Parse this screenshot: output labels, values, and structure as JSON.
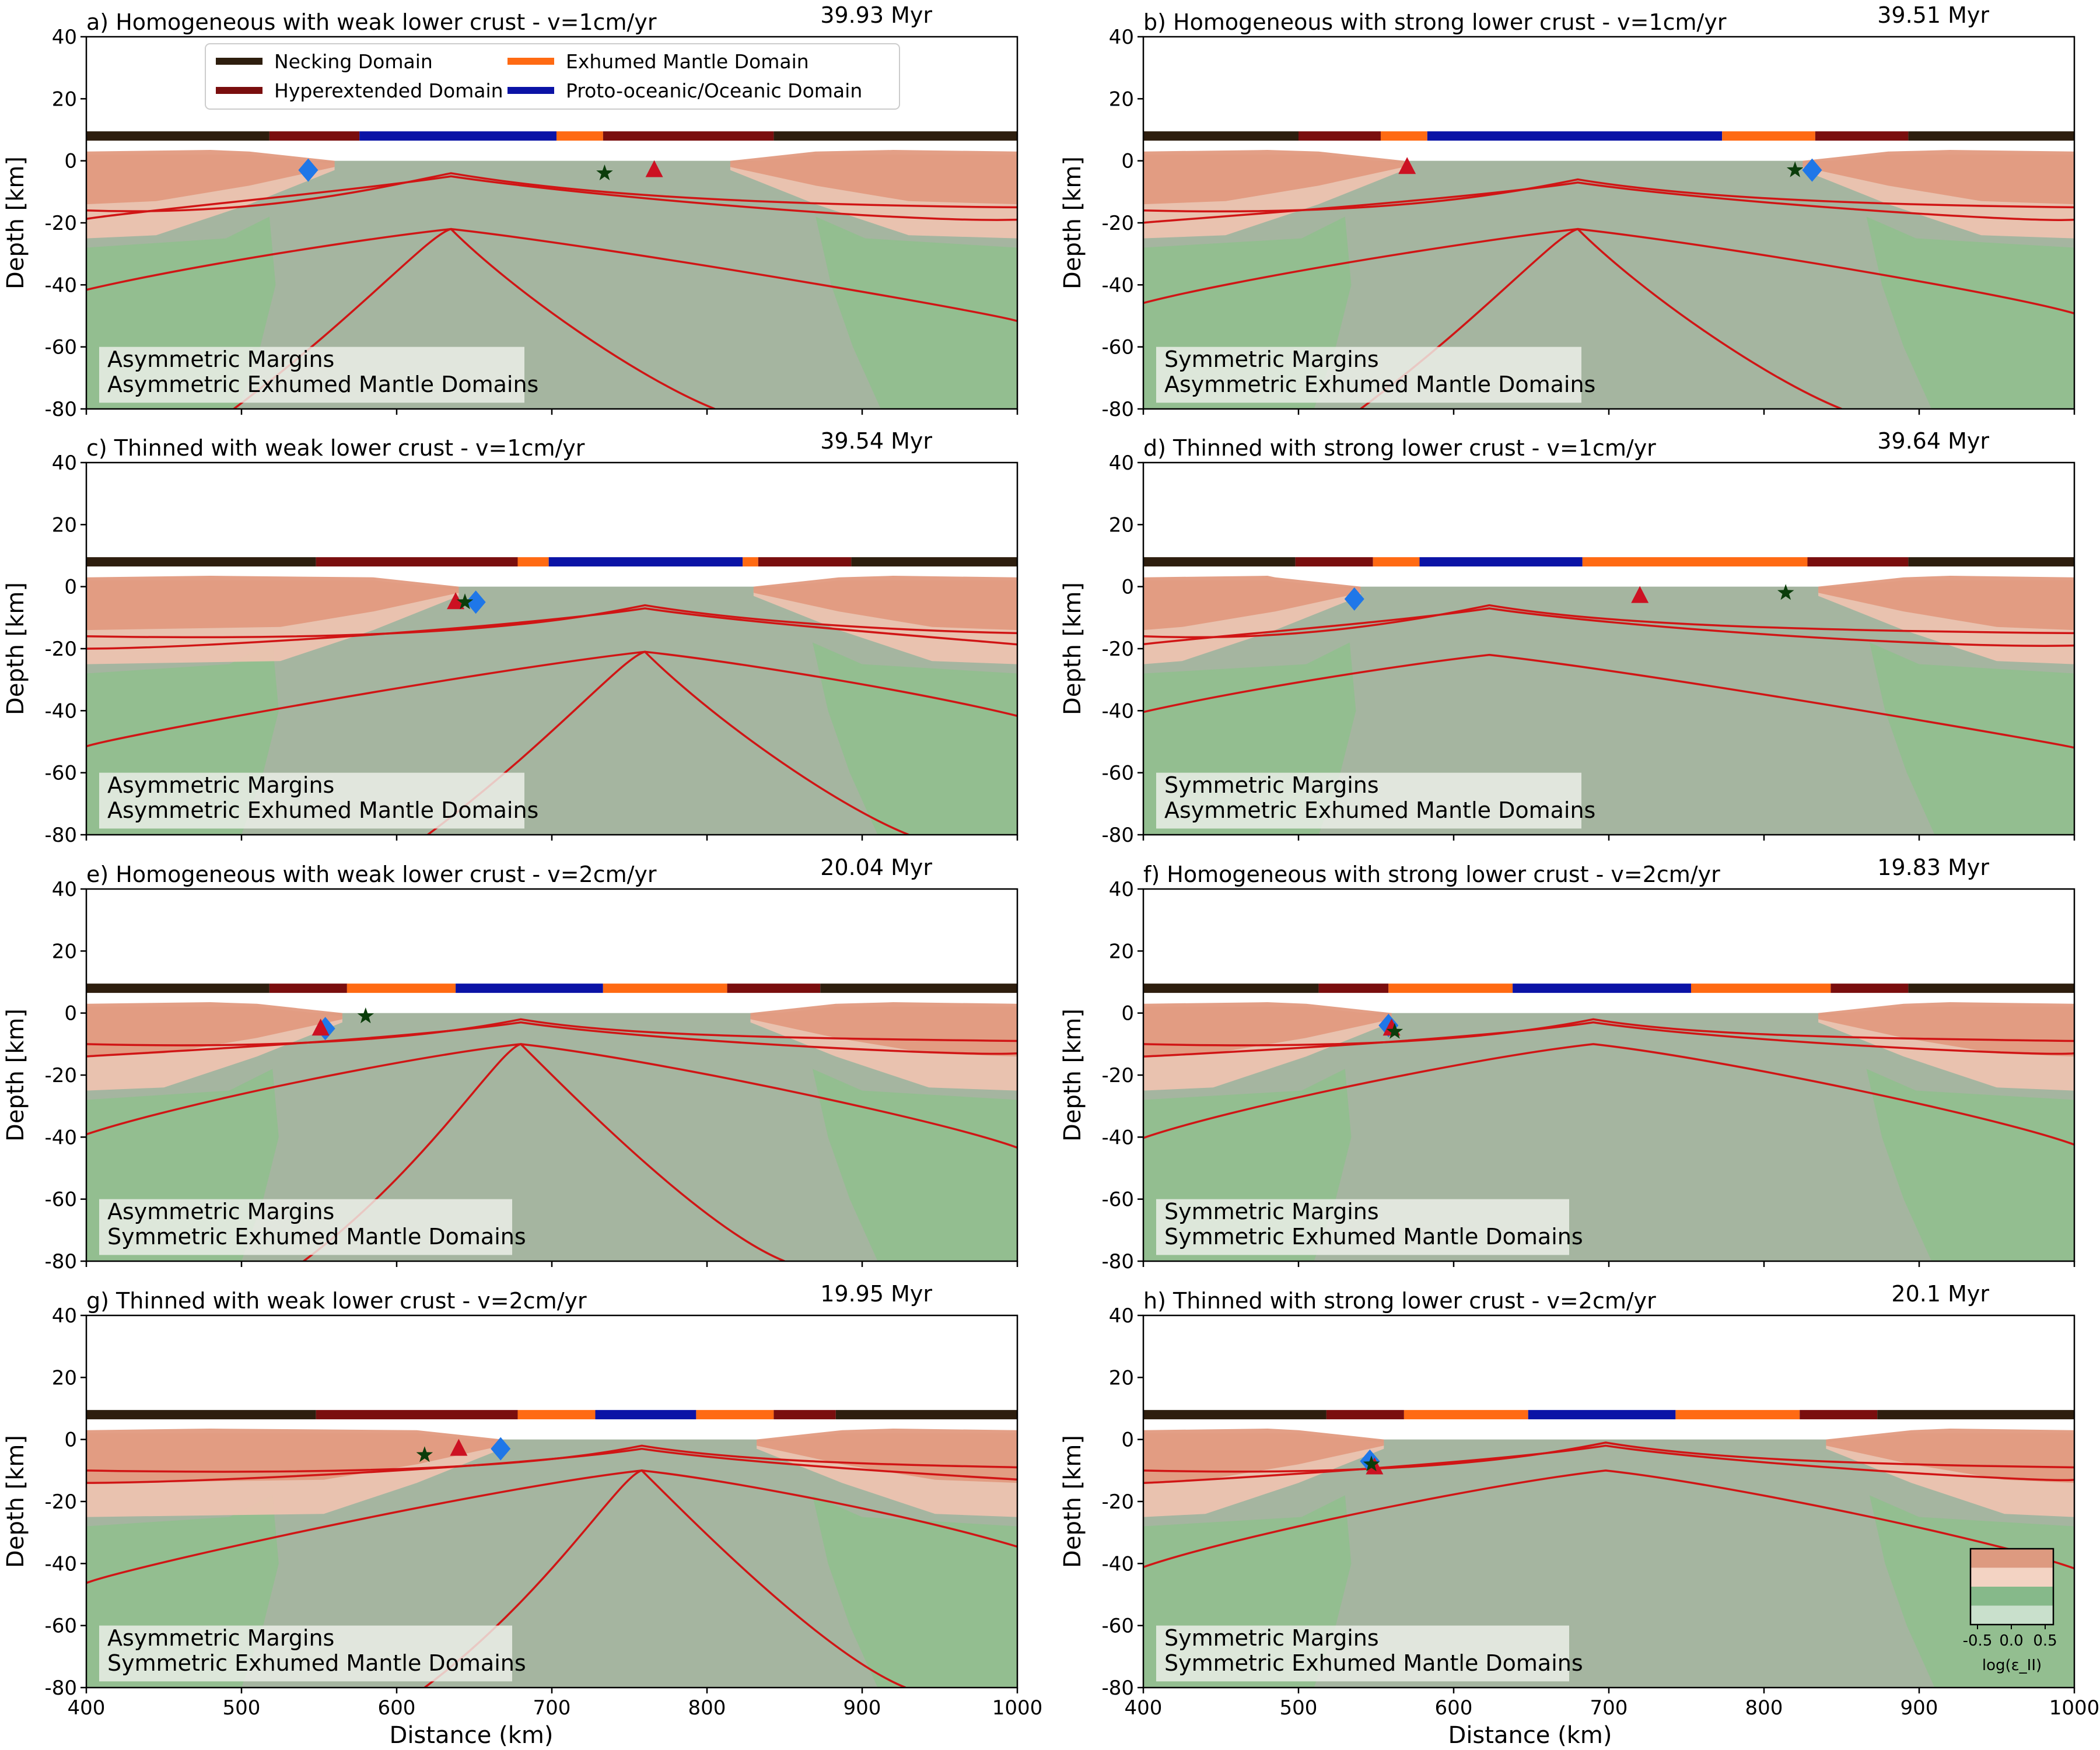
{
  "figure": {
    "x_axis_label": "Distance (km)",
    "y_axis_label": "Depth [km]",
    "x_ticks": [
      400,
      500,
      600,
      700,
      800,
      900,
      1000
    ],
    "y_ticks": [
      40,
      20,
      0,
      -20,
      -40,
      -60,
      -80
    ],
    "colorbar": {
      "label": "log(ε_II)",
      "tick_labels": [
        "-0.5",
        "0.0",
        "0.5"
      ],
      "colors": [
        "#c9e0cc",
        "#86b98a",
        "#f3d3c3",
        "#dd9a80"
      ]
    },
    "legend": {
      "entries": [
        {
          "label": "Necking Domain",
          "color": "#2e1e0e"
        },
        {
          "label": "Exhumed Mantle Domain",
          "color": "#ff6a13"
        },
        {
          "label": "Hyperextended Domain",
          "color": "#7a0e0e"
        },
        {
          "label": "Proto-oceanic/Oceanic Domain",
          "color": "#0b13a6"
        }
      ]
    },
    "colors": {
      "mantle": "#a5b5a0",
      "upper_crust": "#e29a80",
      "lower_crust": "#ecc3b0",
      "green_lithosphere": "#8fbf8d",
      "isotherm": "#d01515",
      "diamond": "#1f77e8",
      "triangle": "#cc1122",
      "star": "#0b3d0b"
    }
  },
  "chart_data": [
    {
      "type": "area",
      "panel": "a",
      "title": "a) Homogeneous with weak lower crust - v=1cm/yr",
      "time": "39.93 Myr",
      "annotation": [
        "Asymmetric Margins",
        "Asymmetric Exhumed Mantle Domains"
      ],
      "xlim": [
        400,
        1000
      ],
      "ylim": [
        -80,
        40
      ],
      "domain_bar": [
        {
          "from": 400,
          "to": 518,
          "domain": "necking"
        },
        {
          "from": 518,
          "to": 576,
          "domain": "hyperextended"
        },
        {
          "from": 576,
          "to": 703,
          "domain": "oceanic"
        },
        {
          "from": 703,
          "to": 733,
          "domain": "exhumed"
        },
        {
          "from": 733,
          "to": 843,
          "domain": "hyperextended"
        },
        {
          "from": 843,
          "to": 1000,
          "domain": "necking"
        }
      ],
      "margins": {
        "left_crust_end": 560,
        "right_crust_start": 815,
        "left_slab": 510,
        "right_slab": 882
      },
      "isotherms": {
        "center": 635,
        "peaks": [
          -5,
          -22
        ],
        "base_depths": [
          -20,
          -52
        ],
        "third_line": true
      },
      "markers": {
        "diamond": [
          543,
          -3
        ],
        "triangle": [
          766,
          -3
        ],
        "star": [
          734,
          -4
        ]
      }
    },
    {
      "type": "area",
      "panel": "b",
      "title": "b) Homogeneous with strong lower crust - v=1cm/yr",
      "time": "39.51 Myr",
      "annotation": [
        "Symmetric Margins",
        "Asymmetric Exhumed Mantle Domains"
      ],
      "xlim": [
        400,
        1000
      ],
      "ylim": [
        -80,
        40
      ],
      "domain_bar": [
        {
          "from": 400,
          "to": 500,
          "domain": "necking"
        },
        {
          "from": 500,
          "to": 553,
          "domain": "hyperextended"
        },
        {
          "from": 553,
          "to": 583,
          "domain": "exhumed"
        },
        {
          "from": 583,
          "to": 773,
          "domain": "oceanic"
        },
        {
          "from": 773,
          "to": 833,
          "domain": "exhumed"
        },
        {
          "from": 833,
          "to": 893,
          "domain": "hyperextended"
        },
        {
          "from": 893,
          "to": 1000,
          "domain": "necking"
        }
      ],
      "margins": {
        "left_crust_end": 568,
        "right_crust_start": 825,
        "left_slab": 522,
        "right_slab": 878
      },
      "isotherms": {
        "center": 680,
        "peaks": [
          -7,
          -22
        ],
        "base_depths": [
          -20,
          -52
        ],
        "third_line": true
      },
      "markers": {
        "diamond": [
          831,
          -3
        ],
        "triangle": [
          570,
          -2
        ],
        "star": [
          820,
          -3
        ]
      }
    },
    {
      "type": "area",
      "panel": "c",
      "title": "c) Thinned  with weak lower crust - v=1cm/yr",
      "time": "39.54 Myr",
      "annotation": [
        "Asymmetric Margins",
        "Asymmetric Exhumed Mantle Domains"
      ],
      "xlim": [
        400,
        1000
      ],
      "ylim": [
        -80,
        40
      ],
      "domain_bar": [
        {
          "from": 400,
          "to": 548,
          "domain": "necking"
        },
        {
          "from": 548,
          "to": 678,
          "domain": "hyperextended"
        },
        {
          "from": 678,
          "to": 698,
          "domain": "exhumed"
        },
        {
          "from": 698,
          "to": 823,
          "domain": "oceanic"
        },
        {
          "from": 823,
          "to": 833,
          "domain": "exhumed"
        },
        {
          "from": 833,
          "to": 893,
          "domain": "hyperextended"
        },
        {
          "from": 893,
          "to": 1000,
          "domain": "necking"
        }
      ],
      "margins": {
        "left_crust_end": 640,
        "right_crust_start": 830,
        "left_slab": 512,
        "right_slab": 880
      },
      "isotherms": {
        "center": 760,
        "peaks": [
          -7,
          -21
        ],
        "base_depths": [
          -20,
          -52
        ],
        "third_line": true
      },
      "markers": {
        "diamond": [
          651,
          -5
        ],
        "triangle": [
          638,
          -5
        ],
        "star": [
          644,
          -5
        ]
      }
    },
    {
      "type": "area",
      "panel": "d",
      "title": "d) Thinned with strong lower crust - v=1cm/yr",
      "time": "39.64 Myr",
      "annotation": [
        "Symmetric Margins",
        "Asymmetric Exhumed Mantle Domains"
      ],
      "xlim": [
        400,
        1000
      ],
      "ylim": [
        -80,
        40
      ],
      "domain_bar": [
        {
          "from": 400,
          "to": 498,
          "domain": "necking"
        },
        {
          "from": 498,
          "to": 548,
          "domain": "hyperextended"
        },
        {
          "from": 548,
          "to": 578,
          "domain": "exhumed"
        },
        {
          "from": 578,
          "to": 683,
          "domain": "oceanic"
        },
        {
          "from": 683,
          "to": 828,
          "domain": "exhumed"
        },
        {
          "from": 828,
          "to": 893,
          "domain": "hyperextended"
        },
        {
          "from": 893,
          "to": 1000,
          "domain": "necking"
        }
      ],
      "margins": {
        "left_crust_end": 540,
        "right_crust_start": 835,
        "left_slab": 525,
        "right_slab": 880
      },
      "isotherms": {
        "center": 623,
        "peaks": [
          -7,
          -22
        ],
        "base_depths": [
          -20,
          -52
        ],
        "third_line": false
      },
      "markers": {
        "diamond": [
          536,
          -4
        ],
        "triangle": [
          720,
          -3
        ],
        "star": [
          814,
          -2
        ]
      }
    },
    {
      "type": "area",
      "panel": "e",
      "title": "e) Homogeneous with weak lower crust - v=2cm/yr",
      "time": "20.04 Myr",
      "annotation": [
        "Asymmetric Margins",
        "Symmetric Exhumed Mantle Domains"
      ],
      "xlim": [
        400,
        1000
      ],
      "ylim": [
        -80,
        40
      ],
      "domain_bar": [
        {
          "from": 400,
          "to": 518,
          "domain": "necking"
        },
        {
          "from": 518,
          "to": 568,
          "domain": "hyperextended"
        },
        {
          "from": 568,
          "to": 638,
          "domain": "exhumed"
        },
        {
          "from": 638,
          "to": 733,
          "domain": "oceanic"
        },
        {
          "from": 733,
          "to": 813,
          "domain": "exhumed"
        },
        {
          "from": 813,
          "to": 873,
          "domain": "hyperextended"
        },
        {
          "from": 873,
          "to": 1000,
          "domain": "necking"
        }
      ],
      "margins": {
        "left_crust_end": 565,
        "right_crust_start": 828,
        "left_slab": 512,
        "right_slab": 880
      },
      "isotherms": {
        "center": 680,
        "peaks": [
          -3,
          -10
        ],
        "base_depths": [
          -14,
          -47
        ],
        "third_line": true
      },
      "markers": {
        "diamond": [
          554,
          -5
        ],
        "triangle": [
          551,
          -5
        ],
        "star": [
          580,
          -1
        ]
      }
    },
    {
      "type": "area",
      "panel": "f",
      "title": "f) Homogeneous with strong lower crust - v=2cm/yr",
      "time": "19.83 Myr",
      "annotation": [
        "Symmetric Margins",
        "Symmetric Exhumed Mantle Domains"
      ],
      "xlim": [
        400,
        1000
      ],
      "ylim": [
        -80,
        40
      ],
      "domain_bar": [
        {
          "from": 400,
          "to": 513,
          "domain": "necking"
        },
        {
          "from": 513,
          "to": 558,
          "domain": "hyperextended"
        },
        {
          "from": 558,
          "to": 638,
          "domain": "exhumed"
        },
        {
          "from": 638,
          "to": 753,
          "domain": "oceanic"
        },
        {
          "from": 753,
          "to": 843,
          "domain": "exhumed"
        },
        {
          "from": 843,
          "to": 893,
          "domain": "hyperextended"
        },
        {
          "from": 893,
          "to": 1000,
          "domain": "necking"
        }
      ],
      "margins": {
        "left_crust_end": 560,
        "right_crust_start": 835,
        "left_slab": 522,
        "right_slab": 878
      },
      "isotherms": {
        "center": 690,
        "peaks": [
          -3,
          -10
        ],
        "base_depths": [
          -14,
          -47
        ],
        "third_line": false
      },
      "markers": {
        "diamond": [
          558,
          -4
        ],
        "triangle": [
          560,
          -5
        ],
        "star": [
          562,
          -6
        ]
      }
    },
    {
      "type": "area",
      "panel": "g",
      "title": "g) Thinned  with weak lower crust - v=2cm/yr",
      "time": "19.95 Myr",
      "annotation": [
        "Asymmetric Margins",
        "Symmetric Exhumed Mantle Domains"
      ],
      "xlim": [
        400,
        1000
      ],
      "ylim": [
        -80,
        40
      ],
      "domain_bar": [
        {
          "from": 400,
          "to": 548,
          "domain": "necking"
        },
        {
          "from": 548,
          "to": 678,
          "domain": "hyperextended"
        },
        {
          "from": 678,
          "to": 728,
          "domain": "exhumed"
        },
        {
          "from": 728,
          "to": 793,
          "domain": "oceanic"
        },
        {
          "from": 793,
          "to": 843,
          "domain": "exhumed"
        },
        {
          "from": 843,
          "to": 883,
          "domain": "hyperextended"
        },
        {
          "from": 883,
          "to": 1000,
          "domain": "necking"
        }
      ],
      "margins": {
        "left_crust_end": 668,
        "right_crust_start": 832,
        "left_slab": 512,
        "right_slab": 880
      },
      "isotherms": {
        "center": 758,
        "peaks": [
          -3,
          -10
        ],
        "base_depths": [
          -14,
          -47
        ],
        "third_line": true
      },
      "markers": {
        "diamond": [
          667,
          -3
        ],
        "triangle": [
          640,
          -3
        ],
        "star": [
          618,
          -5
        ]
      }
    },
    {
      "type": "area",
      "panel": "h",
      "title": "h) Thinned with strong lower crust - v=2cm/yr",
      "time": "20.1 Myr",
      "annotation": [
        "Symmetric Margins",
        "Symmetric Exhumed Mantle Domains"
      ],
      "xlim": [
        400,
        1000
      ],
      "ylim": [
        -80,
        40
      ],
      "domain_bar": [
        {
          "from": 400,
          "to": 518,
          "domain": "necking"
        },
        {
          "from": 518,
          "to": 568,
          "domain": "hyperextended"
        },
        {
          "from": 568,
          "to": 648,
          "domain": "exhumed"
        },
        {
          "from": 648,
          "to": 743,
          "domain": "oceanic"
        },
        {
          "from": 743,
          "to": 823,
          "domain": "exhumed"
        },
        {
          "from": 823,
          "to": 873,
          "domain": "hyperextended"
        },
        {
          "from": 873,
          "to": 1000,
          "domain": "necking"
        }
      ],
      "margins": {
        "left_crust_end": 555,
        "right_crust_start": 840,
        "left_slab": 522,
        "right_slab": 880
      },
      "isotherms": {
        "center": 698,
        "peaks": [
          -2,
          -10
        ],
        "base_depths": [
          -14,
          -47
        ],
        "third_line": false
      },
      "markers": {
        "diamond": [
          546,
          -7
        ],
        "triangle": [
          549,
          -9
        ],
        "star": [
          547,
          -8
        ]
      }
    }
  ]
}
